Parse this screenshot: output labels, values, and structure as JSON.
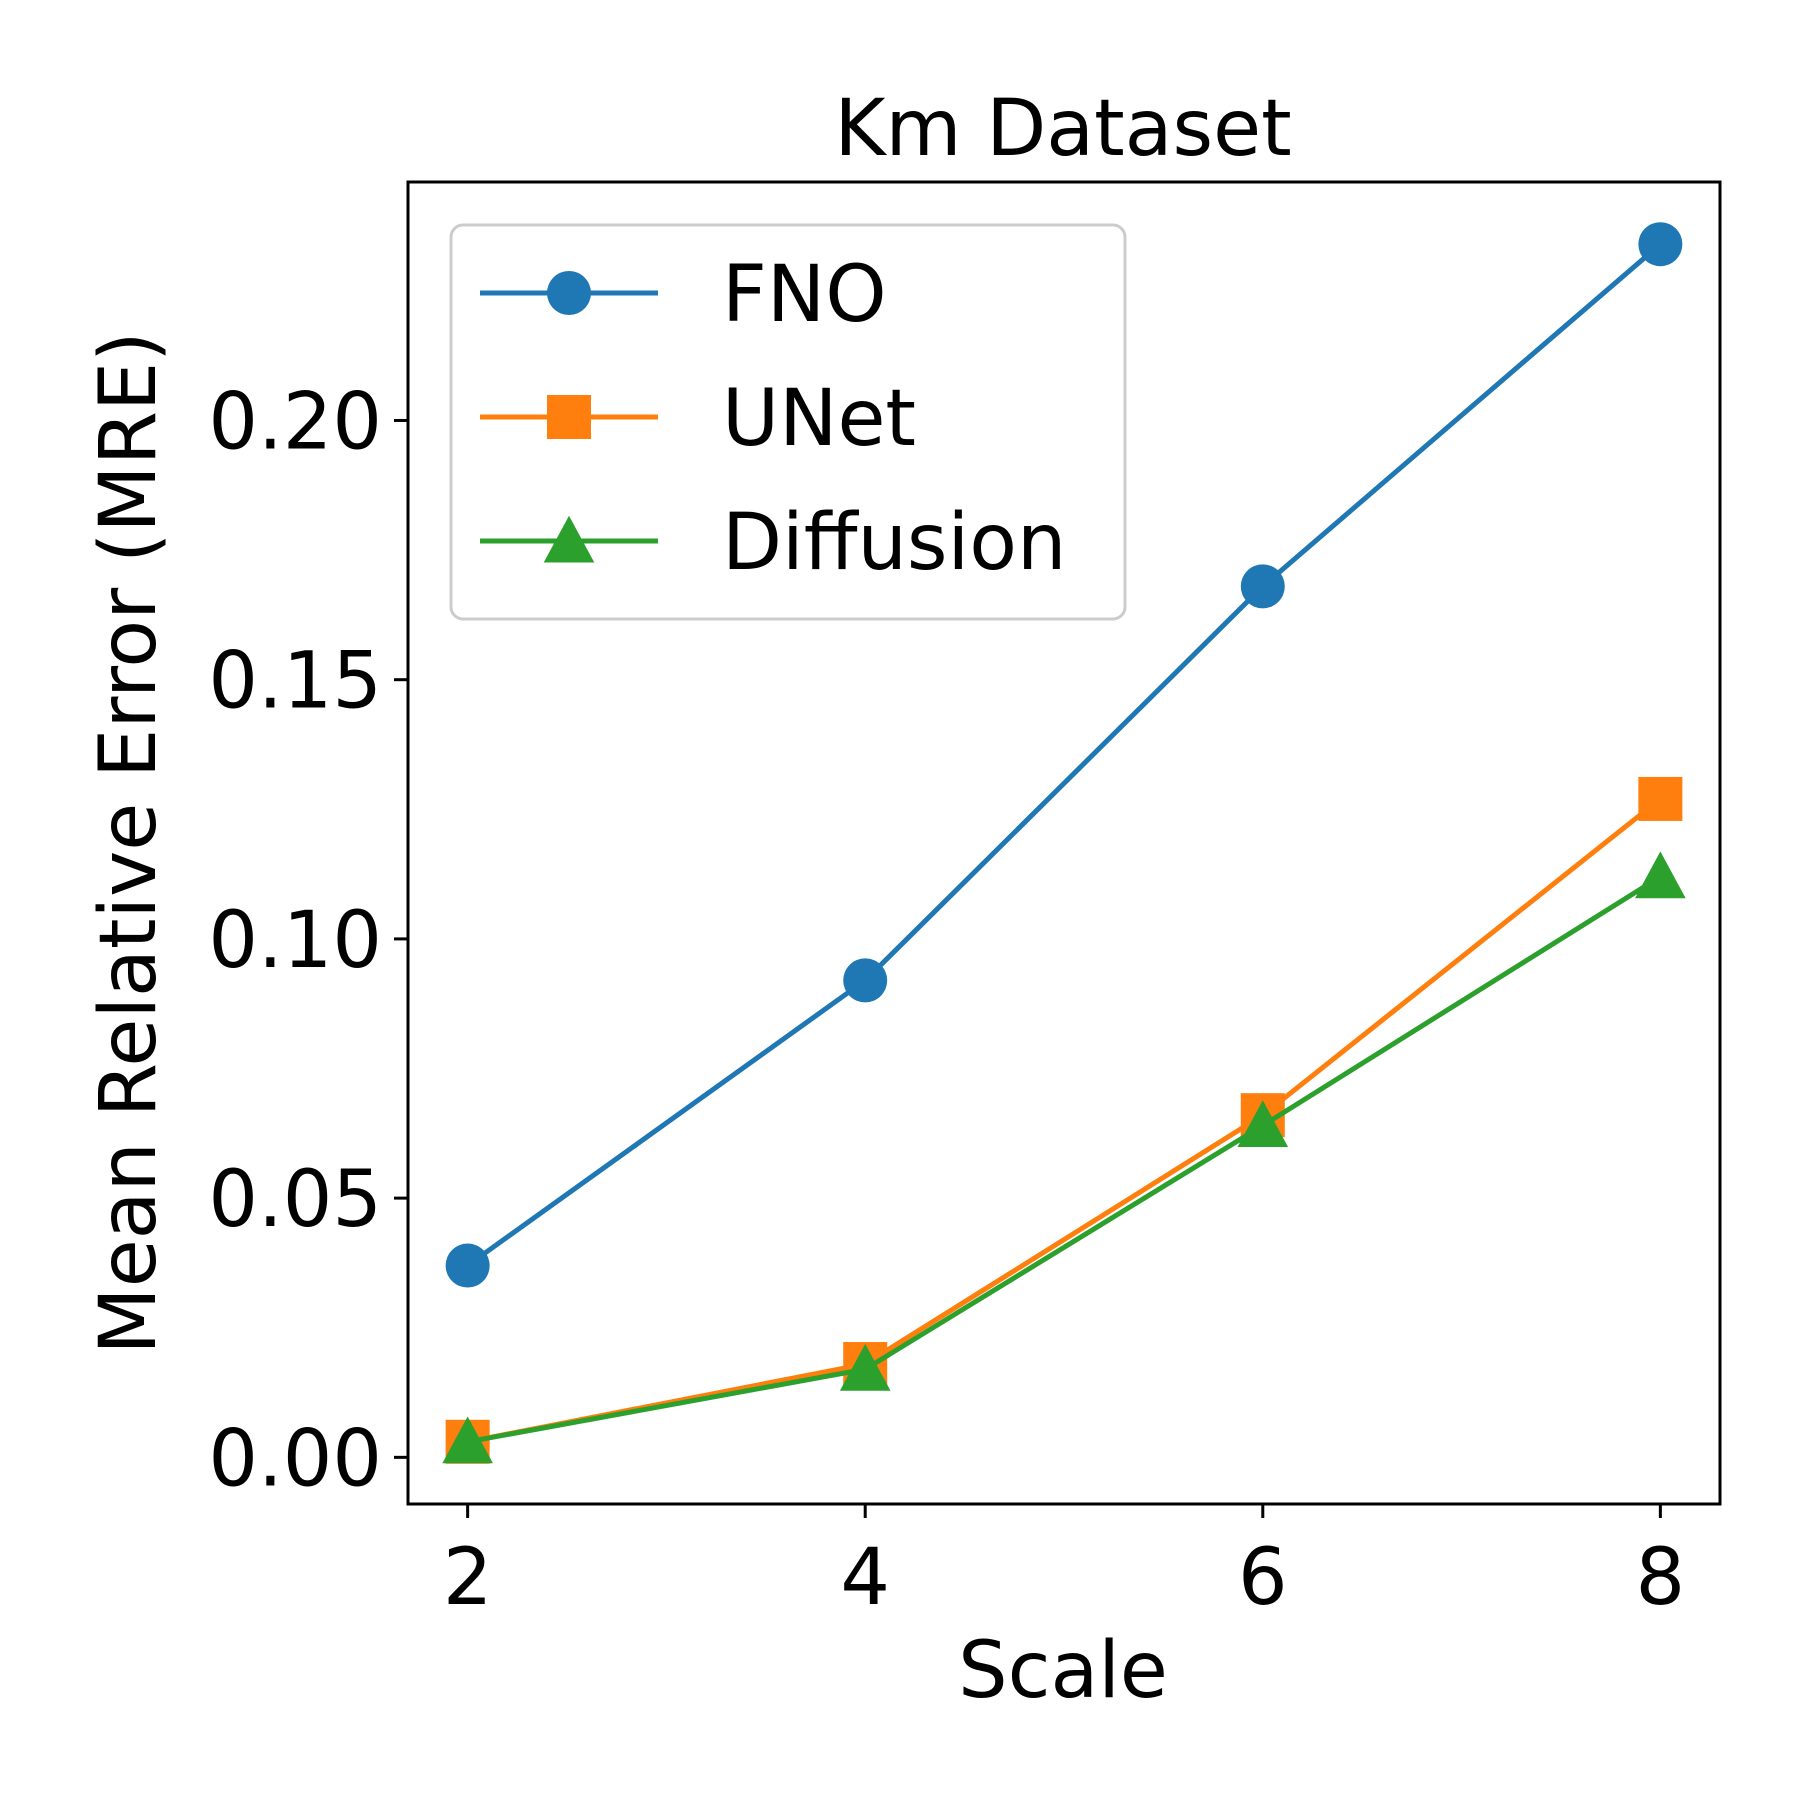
{
  "chart_data": {
    "type": "line",
    "title": "Km Dataset",
    "xlabel": "Scale",
    "ylabel": "Mean Relative Error (MRE)",
    "x": [
      2,
      4,
      6,
      8
    ],
    "xticks": [
      "2",
      "4",
      "6",
      "8"
    ],
    "yticks": [
      "0.00",
      "0.05",
      "0.10",
      "0.15",
      "0.20"
    ],
    "xlim": [
      1.7,
      8.3
    ],
    "ylim": [
      -0.009,
      0.246
    ],
    "grid": false,
    "legend_position": "top-left",
    "series": [
      {
        "name": "FNO",
        "values": [
          0.037,
          0.092,
          0.168,
          0.234
        ],
        "color": "#1f77b4",
        "marker": "circle"
      },
      {
        "name": "UNet",
        "values": [
          0.003,
          0.018,
          0.066,
          0.127
        ],
        "color": "#ff7f0e",
        "marker": "square"
      },
      {
        "name": "Diffusion",
        "values": [
          0.003,
          0.017,
          0.064,
          0.112
        ],
        "color": "#2ca02c",
        "marker": "triangle"
      }
    ]
  }
}
